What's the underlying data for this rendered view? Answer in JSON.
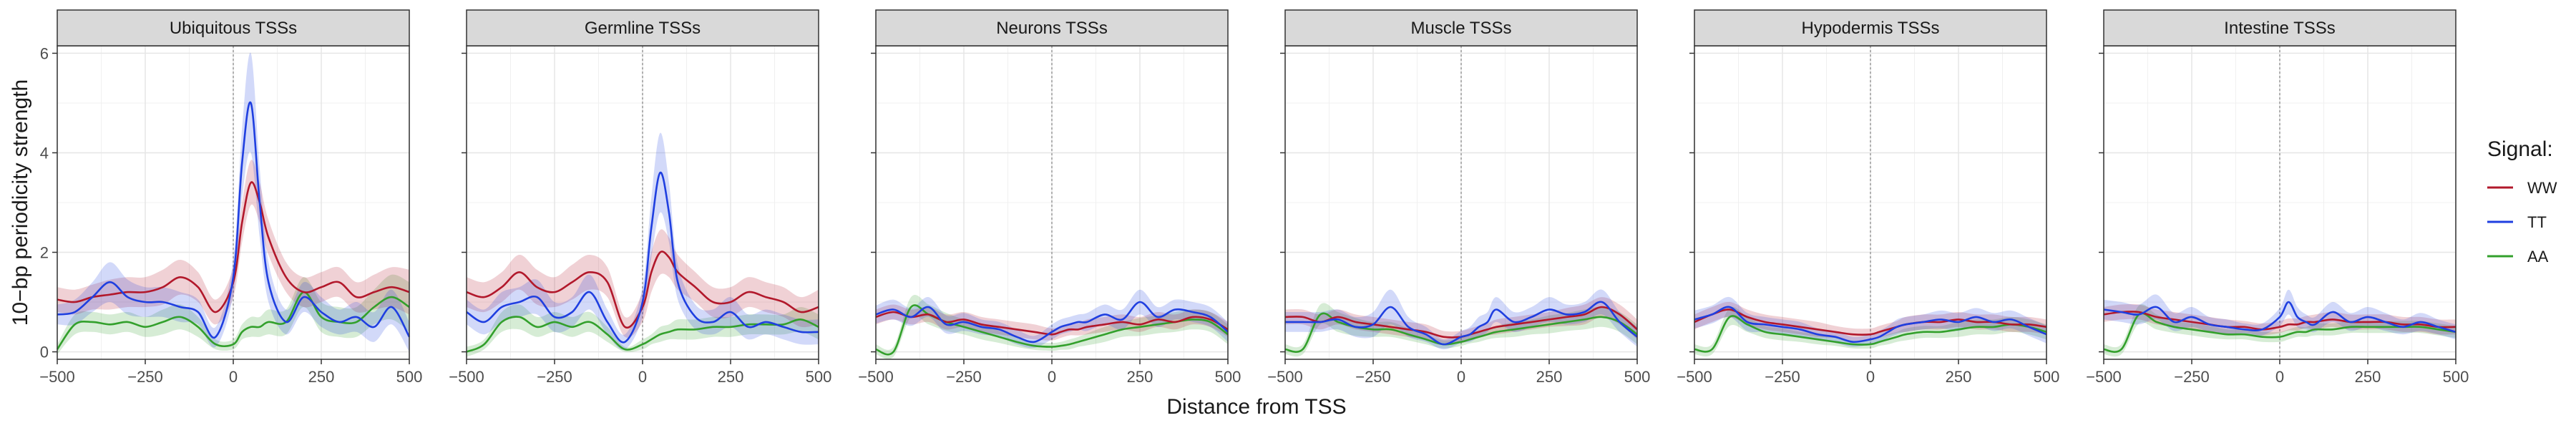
{
  "chart_data": {
    "type": "line",
    "xlabel": "Distance from TSS",
    "ylabel": "10−bp periodicity strength",
    "xlim": [
      -500,
      500
    ],
    "ylim": [
      -0.15,
      6.15
    ],
    "xticks": [
      -500,
      -250,
      0,
      250,
      500
    ],
    "xtick_labels": [
      "−500",
      "−250",
      "0",
      "250",
      "500"
    ],
    "yticks": [
      0,
      2,
      4,
      6
    ],
    "ytick_labels": [
      "0",
      "2",
      "4",
      "6"
    ],
    "grid": true,
    "vline_at": 0,
    "legend": {
      "title": "Signal:",
      "position": "right",
      "entries": [
        "WW",
        "TT",
        "AA"
      ]
    },
    "series_colors": {
      "WW": "#B2182B",
      "TT": "#1F3FE0",
      "AA": "#33A02C"
    },
    "x": [
      -500,
      -450,
      -400,
      -350,
      -300,
      -250,
      -200,
      -150,
      -100,
      -50,
      0,
      25,
      50,
      75,
      100,
      150,
      200,
      250,
      300,
      350,
      400,
      450,
      500
    ],
    "panels": [
      {
        "title": "Ubiquitous TSSs",
        "series": [
          {
            "name": "WW",
            "values": [
              1.05,
              1.0,
              1.1,
              1.15,
              1.2,
              1.2,
              1.3,
              1.5,
              1.3,
              0.8,
              1.4,
              2.6,
              3.4,
              3.0,
              2.3,
              1.5,
              1.2,
              1.3,
              1.4,
              1.1,
              1.2,
              1.3,
              1.2
            ],
            "band": [
              0.25,
              0.25,
              0.25,
              0.3,
              0.3,
              0.3,
              0.35,
              0.35,
              0.3,
              0.25,
              0.3,
              0.4,
              0.45,
              0.4,
              0.35,
              0.3,
              0.3,
              0.3,
              0.3,
              0.3,
              0.35,
              0.4,
              0.45
            ]
          },
          {
            "name": "TT",
            "values": [
              0.75,
              0.8,
              1.1,
              1.4,
              1.1,
              1.0,
              1.0,
              0.9,
              0.8,
              0.3,
              1.5,
              3.8,
              5.0,
              3.0,
              1.4,
              0.6,
              1.1,
              0.8,
              0.6,
              0.7,
              0.5,
              0.9,
              0.3
            ],
            "band": [
              0.2,
              0.25,
              0.3,
              0.4,
              0.35,
              0.3,
              0.3,
              0.3,
              0.25,
              0.2,
              0.35,
              0.7,
              1.0,
              0.7,
              0.4,
              0.25,
              0.3,
              0.3,
              0.25,
              0.3,
              0.3,
              0.35,
              0.3
            ]
          },
          {
            "name": "AA",
            "values": [
              0.05,
              0.55,
              0.6,
              0.55,
              0.6,
              0.5,
              0.6,
              0.7,
              0.5,
              0.15,
              0.15,
              0.4,
              0.5,
              0.5,
              0.6,
              0.6,
              1.2,
              0.7,
              0.6,
              0.6,
              0.9,
              1.1,
              0.9
            ],
            "band": [
              0.1,
              0.2,
              0.2,
              0.2,
              0.2,
              0.2,
              0.25,
              0.25,
              0.2,
              0.1,
              0.1,
              0.15,
              0.2,
              0.2,
              0.25,
              0.25,
              0.3,
              0.3,
              0.3,
              0.3,
              0.35,
              0.45,
              0.5
            ]
          }
        ]
      },
      {
        "title": "Germline TSSs",
        "series": [
          {
            "name": "WW",
            "values": [
              1.2,
              1.1,
              1.3,
              1.6,
              1.3,
              1.2,
              1.4,
              1.6,
              1.4,
              0.5,
              0.9,
              1.6,
              2.0,
              1.9,
              1.6,
              1.3,
              1.0,
              1.0,
              1.2,
              1.1,
              1.0,
              0.8,
              0.9
            ],
            "band": [
              0.3,
              0.3,
              0.3,
              0.35,
              0.35,
              0.3,
              0.35,
              0.35,
              0.3,
              0.2,
              0.3,
              0.4,
              0.45,
              0.4,
              0.35,
              0.3,
              0.3,
              0.3,
              0.3,
              0.3,
              0.3,
              0.3,
              0.35
            ]
          },
          {
            "name": "TT",
            "values": [
              0.8,
              0.6,
              0.9,
              1.0,
              1.1,
              0.7,
              0.8,
              1.2,
              0.6,
              0.2,
              1.0,
              2.5,
              3.6,
              2.8,
              1.4,
              0.7,
              0.6,
              0.8,
              0.5,
              0.6,
              0.5,
              0.4,
              0.4
            ],
            "band": [
              0.25,
              0.25,
              0.3,
              0.3,
              0.35,
              0.3,
              0.3,
              0.35,
              0.25,
              0.15,
              0.3,
              0.6,
              0.8,
              0.6,
              0.35,
              0.25,
              0.25,
              0.3,
              0.25,
              0.25,
              0.25,
              0.25,
              0.25
            ]
          },
          {
            "name": "AA",
            "values": [
              0.0,
              0.15,
              0.6,
              0.7,
              0.5,
              0.6,
              0.5,
              0.6,
              0.35,
              0.05,
              0.15,
              0.25,
              0.35,
              0.4,
              0.45,
              0.45,
              0.5,
              0.5,
              0.55,
              0.55,
              0.55,
              0.65,
              0.5
            ],
            "band": [
              0.1,
              0.1,
              0.2,
              0.25,
              0.2,
              0.2,
              0.2,
              0.2,
              0.15,
              0.05,
              0.1,
              0.1,
              0.15,
              0.15,
              0.2,
              0.2,
              0.2,
              0.2,
              0.2,
              0.2,
              0.2,
              0.25,
              0.25
            ]
          }
        ]
      },
      {
        "title": "Neurons TSSs",
        "series": [
          {
            "name": "WW",
            "values": [
              0.7,
              0.8,
              0.7,
              0.75,
              0.6,
              0.65,
              0.55,
              0.5,
              0.45,
              0.4,
              0.35,
              0.4,
              0.45,
              0.45,
              0.5,
              0.55,
              0.6,
              0.55,
              0.65,
              0.6,
              0.7,
              0.65,
              0.45
            ],
            "band": [
              0.15,
              0.15,
              0.15,
              0.15,
              0.15,
              0.15,
              0.15,
              0.15,
              0.15,
              0.15,
              0.12,
              0.12,
              0.12,
              0.12,
              0.15,
              0.15,
              0.15,
              0.15,
              0.15,
              0.15,
              0.15,
              0.15,
              0.15
            ]
          },
          {
            "name": "TT",
            "values": [
              0.75,
              0.85,
              0.7,
              0.9,
              0.55,
              0.6,
              0.5,
              0.45,
              0.3,
              0.2,
              0.4,
              0.5,
              0.55,
              0.6,
              0.6,
              0.75,
              0.65,
              1.0,
              0.7,
              0.85,
              0.8,
              0.7,
              0.4
            ],
            "band": [
              0.18,
              0.2,
              0.18,
              0.2,
              0.18,
              0.18,
              0.15,
              0.15,
              0.15,
              0.12,
              0.15,
              0.15,
              0.15,
              0.15,
              0.18,
              0.2,
              0.2,
              0.25,
              0.2,
              0.2,
              0.2,
              0.2,
              0.2
            ]
          },
          {
            "name": "AA",
            "values": [
              0.05,
              0.0,
              0.9,
              0.75,
              0.6,
              0.5,
              0.4,
              0.3,
              0.2,
              0.12,
              0.1,
              0.12,
              0.15,
              0.2,
              0.25,
              0.35,
              0.45,
              0.5,
              0.55,
              0.6,
              0.65,
              0.6,
              0.35
            ],
            "band": [
              0.1,
              0.1,
              0.2,
              0.2,
              0.18,
              0.15,
              0.15,
              0.12,
              0.1,
              0.08,
              0.08,
              0.08,
              0.1,
              0.1,
              0.12,
              0.15,
              0.15,
              0.18,
              0.18,
              0.2,
              0.2,
              0.2,
              0.2
            ]
          }
        ]
      },
      {
        "title": "Muscle TSSs",
        "series": [
          {
            "name": "WW",
            "values": [
              0.7,
              0.7,
              0.6,
              0.7,
              0.6,
              0.55,
              0.5,
              0.45,
              0.4,
              0.3,
              0.3,
              0.35,
              0.4,
              0.45,
              0.5,
              0.55,
              0.6,
              0.65,
              0.7,
              0.75,
              0.9,
              0.75,
              0.45
            ],
            "band": [
              0.15,
              0.15,
              0.15,
              0.15,
              0.15,
              0.15,
              0.15,
              0.15,
              0.15,
              0.12,
              0.12,
              0.12,
              0.12,
              0.12,
              0.15,
              0.15,
              0.15,
              0.15,
              0.18,
              0.2,
              0.2,
              0.2,
              0.2
            ]
          },
          {
            "name": "TT",
            "values": [
              0.6,
              0.6,
              0.6,
              0.65,
              0.5,
              0.55,
              0.9,
              0.5,
              0.35,
              0.15,
              0.3,
              0.35,
              0.5,
              0.6,
              0.85,
              0.6,
              0.7,
              0.85,
              0.75,
              0.8,
              1.0,
              0.6,
              0.3
            ],
            "band": [
              0.2,
              0.2,
              0.2,
              0.2,
              0.2,
              0.25,
              0.35,
              0.2,
              0.15,
              0.1,
              0.12,
              0.15,
              0.2,
              0.2,
              0.25,
              0.2,
              0.2,
              0.25,
              0.2,
              0.2,
              0.25,
              0.2,
              0.2
            ]
          },
          {
            "name": "AA",
            "values": [
              0.05,
              0.05,
              0.75,
              0.6,
              0.5,
              0.45,
              0.45,
              0.35,
              0.25,
              0.15,
              0.2,
              0.25,
              0.3,
              0.35,
              0.4,
              0.45,
              0.5,
              0.55,
              0.6,
              0.65,
              0.7,
              0.6,
              0.35
            ],
            "band": [
              0.1,
              0.1,
              0.2,
              0.2,
              0.18,
              0.15,
              0.15,
              0.12,
              0.1,
              0.08,
              0.08,
              0.08,
              0.1,
              0.1,
              0.12,
              0.15,
              0.15,
              0.18,
              0.18,
              0.2,
              0.2,
              0.2,
              0.2
            ]
          }
        ]
      },
      {
        "title": "Hypodermis TSSs",
        "series": [
          {
            "name": "WW",
            "values": [
              0.6,
              0.75,
              0.85,
              0.7,
              0.6,
              0.55,
              0.5,
              0.45,
              0.4,
              0.35,
              0.35,
              0.4,
              0.45,
              0.5,
              0.55,
              0.6,
              0.6,
              0.65,
              0.6,
              0.6,
              0.55,
              0.55,
              0.5
            ],
            "band": [
              0.15,
              0.15,
              0.15,
              0.15,
              0.15,
              0.15,
              0.15,
              0.15,
              0.12,
              0.12,
              0.12,
              0.12,
              0.12,
              0.12,
              0.15,
              0.15,
              0.15,
              0.15,
              0.15,
              0.15,
              0.15,
              0.15,
              0.15
            ]
          },
          {
            "name": "TT",
            "values": [
              0.65,
              0.75,
              0.9,
              0.6,
              0.55,
              0.5,
              0.45,
              0.35,
              0.3,
              0.2,
              0.25,
              0.3,
              0.4,
              0.5,
              0.55,
              0.6,
              0.65,
              0.6,
              0.7,
              0.6,
              0.65,
              0.5,
              0.35
            ],
            "band": [
              0.18,
              0.18,
              0.2,
              0.18,
              0.15,
              0.15,
              0.15,
              0.12,
              0.12,
              0.1,
              0.1,
              0.12,
              0.12,
              0.15,
              0.15,
              0.15,
              0.18,
              0.18,
              0.18,
              0.18,
              0.18,
              0.18,
              0.18
            ]
          },
          {
            "name": "AA",
            "values": [
              0.05,
              0.05,
              0.7,
              0.55,
              0.4,
              0.35,
              0.3,
              0.25,
              0.2,
              0.15,
              0.15,
              0.2,
              0.25,
              0.3,
              0.35,
              0.4,
              0.4,
              0.45,
              0.5,
              0.5,
              0.55,
              0.5,
              0.4
            ],
            "band": [
              0.1,
              0.1,
              0.18,
              0.15,
              0.12,
              0.12,
              0.1,
              0.1,
              0.08,
              0.08,
              0.08,
              0.08,
              0.1,
              0.1,
              0.12,
              0.12,
              0.12,
              0.15,
              0.15,
              0.15,
              0.15,
              0.15,
              0.15
            ]
          }
        ]
      },
      {
        "title": "Intestine TSSs",
        "series": [
          {
            "name": "WW",
            "values": [
              0.75,
              0.8,
              0.8,
              0.7,
              0.65,
              0.6,
              0.55,
              0.5,
              0.5,
              0.45,
              0.5,
              0.55,
              0.55,
              0.6,
              0.6,
              0.65,
              0.6,
              0.6,
              0.6,
              0.55,
              0.55,
              0.5,
              0.5
            ],
            "band": [
              0.15,
              0.15,
              0.15,
              0.15,
              0.15,
              0.15,
              0.15,
              0.15,
              0.12,
              0.12,
              0.12,
              0.12,
              0.12,
              0.12,
              0.15,
              0.15,
              0.15,
              0.15,
              0.15,
              0.15,
              0.15,
              0.15,
              0.15
            ]
          },
          {
            "name": "TT",
            "values": [
              0.85,
              0.8,
              0.75,
              0.9,
              0.6,
              0.7,
              0.55,
              0.5,
              0.45,
              0.45,
              0.7,
              1.0,
              0.7,
              0.6,
              0.55,
              0.8,
              0.6,
              0.7,
              0.6,
              0.5,
              0.6,
              0.5,
              0.4
            ],
            "band": [
              0.2,
              0.2,
              0.2,
              0.25,
              0.18,
              0.2,
              0.15,
              0.15,
              0.12,
              0.12,
              0.18,
              0.25,
              0.2,
              0.15,
              0.15,
              0.2,
              0.18,
              0.2,
              0.18,
              0.15,
              0.18,
              0.15,
              0.15
            ]
          },
          {
            "name": "AA",
            "values": [
              0.05,
              0.05,
              0.75,
              0.6,
              0.5,
              0.45,
              0.4,
              0.35,
              0.35,
              0.3,
              0.3,
              0.35,
              0.4,
              0.4,
              0.45,
              0.45,
              0.5,
              0.5,
              0.5,
              0.5,
              0.5,
              0.45,
              0.4
            ],
            "band": [
              0.1,
              0.1,
              0.18,
              0.15,
              0.12,
              0.12,
              0.12,
              0.1,
              0.1,
              0.1,
              0.1,
              0.1,
              0.1,
              0.1,
              0.12,
              0.12,
              0.12,
              0.12,
              0.12,
              0.12,
              0.12,
              0.12,
              0.12
            ]
          }
        ]
      }
    ]
  }
}
